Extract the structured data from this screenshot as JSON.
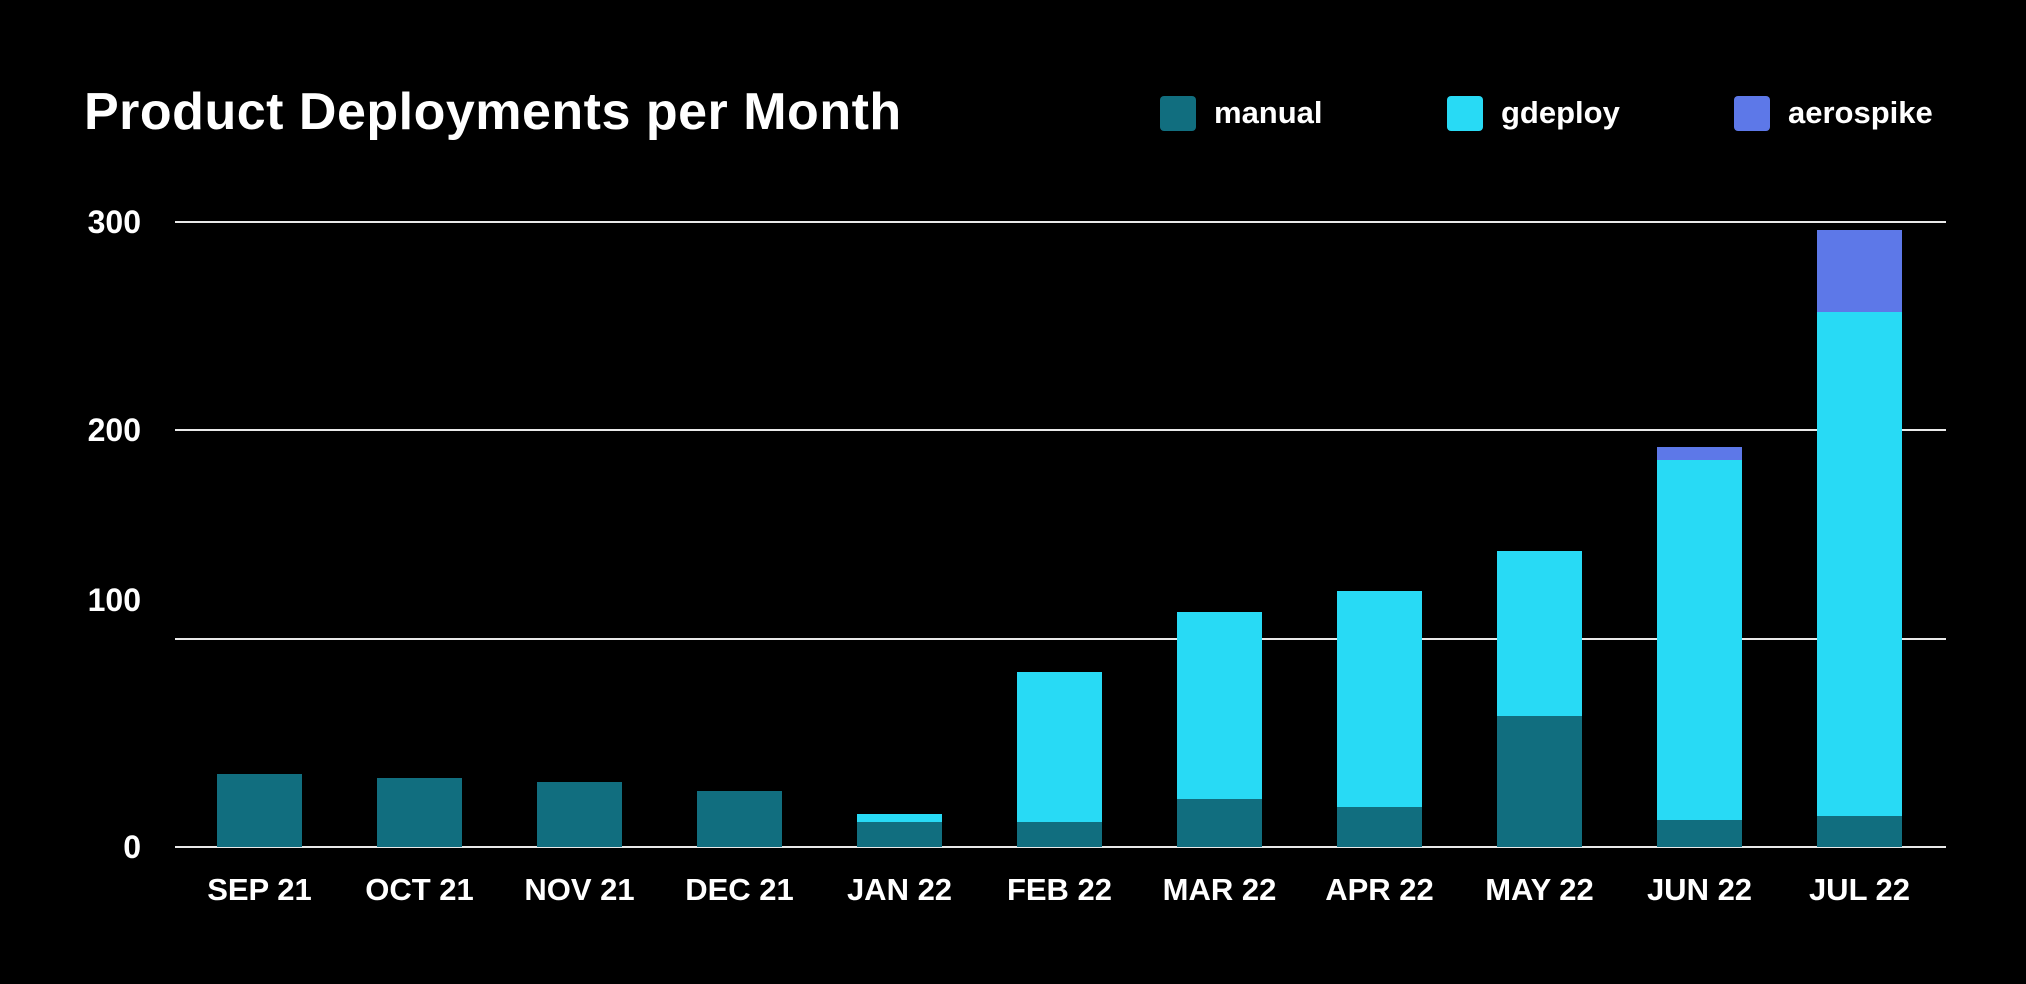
{
  "title": "Product Deployments per Month",
  "legend": {
    "items": [
      {
        "label": "manual",
        "color": "#116e7f"
      },
      {
        "label": "gdeploy",
        "color": "#28daf5"
      },
      {
        "label": "aerospike",
        "color": "#5d78e8"
      }
    ]
  },
  "colors": {
    "background": "#000000",
    "text": "#ffffff",
    "gridline": "#e9e9e9"
  },
  "chart_data": {
    "type": "bar",
    "stacked": true,
    "title": "Product Deployments per Month",
    "categories": [
      "SEP 21",
      "OCT 21",
      "NOV 21",
      "DEC 21",
      "JAN 22",
      "FEB 22",
      "MAR 22",
      "APR 22",
      "MAY 22",
      "JUN 22",
      "JUL 22"
    ],
    "series": [
      {
        "name": "manual",
        "color": "#116e7f",
        "values": [
          35,
          33,
          31,
          27,
          12,
          12,
          23,
          19,
          63,
          13,
          15
        ]
      },
      {
        "name": "gdeploy",
        "color": "#28daf5",
        "values": [
          0,
          0,
          0,
          0,
          4,
          72,
          90,
          104,
          79,
          173,
          242
        ]
      },
      {
        "name": "aerospike",
        "color": "#5d78e8",
        "values": [
          0,
          0,
          0,
          0,
          0,
          0,
          0,
          0,
          0,
          6,
          39
        ]
      }
    ],
    "totals": [
      35,
      33,
      31,
      27,
      16,
      84,
      113,
      123,
      142,
      192,
      296
    ],
    "ylim": [
      0,
      300
    ],
    "yticks": [
      300,
      200,
      100,
      0
    ],
    "xlabel": "",
    "ylabel": "",
    "grid": true,
    "legend_position": "top-right",
    "background": "#000000"
  }
}
